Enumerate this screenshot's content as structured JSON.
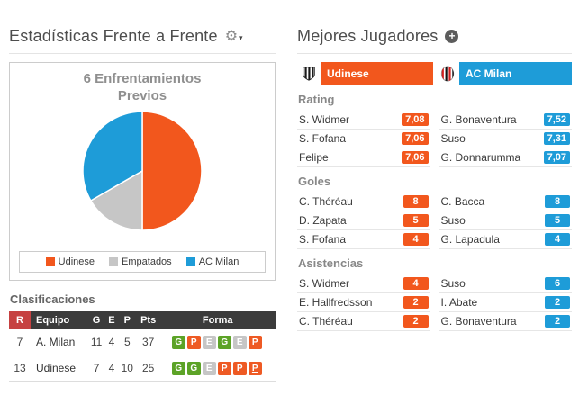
{
  "colors": {
    "orange": "#f2571d",
    "blue": "#1e9cd8",
    "draw_gray": "#c6c6c6",
    "win_green": "#5ca327",
    "loss_orange": "#ee5a24",
    "header_dark": "#3b3b3b",
    "rank_red": "#c64141"
  },
  "icons": {
    "settings": "⚙",
    "dropdown": "▾",
    "add": "+"
  },
  "left": {
    "title": "Estadísticas Frente a Frente",
    "chart": {
      "title_line1": "6 Enfrentamientos",
      "title_line2": "Previos",
      "legend": [
        {
          "label": "Udinese",
          "color": "#f2571d"
        },
        {
          "label": "Empatados",
          "color": "#c6c6c6"
        },
        {
          "label": "AC Milan",
          "color": "#1e9cd8"
        }
      ]
    },
    "standings": {
      "heading": "Clasificaciones",
      "columns": [
        "R",
        "Equipo",
        "G",
        "E",
        "P",
        "Pts",
        "Forma"
      ],
      "rows": [
        {
          "rank": "7",
          "team": "A. Milan",
          "g": "11",
          "e": "4",
          "p": "5",
          "pts": "37",
          "form": [
            "G",
            "P",
            "E",
            "G",
            "E",
            "P"
          ]
        },
        {
          "rank": "13",
          "team": "Udinese",
          "g": "7",
          "e": "4",
          "p": "10",
          "pts": "25",
          "form": [
            "G",
            "G",
            "E",
            "P",
            "P",
            "P"
          ]
        }
      ]
    }
  },
  "right": {
    "title": "Mejores Jugadores",
    "teams": [
      {
        "name": "Udinese",
        "color": "#f2571d"
      },
      {
        "name": "AC Milan",
        "color": "#1e9cd8"
      }
    ],
    "sections": [
      {
        "label": "Rating",
        "rows": [
          {
            "home_player": "S. Widmer",
            "home_value": "7,08",
            "away_player": "G. Bonaventura",
            "away_value": "7,52"
          },
          {
            "home_player": "S. Fofana",
            "home_value": "7,06",
            "away_player": "Suso",
            "away_value": "7,31"
          },
          {
            "home_player": "Felipe",
            "home_value": "7,06",
            "away_player": "G. Donnarumma",
            "away_value": "7,07"
          }
        ]
      },
      {
        "label": "Goles",
        "rows": [
          {
            "home_player": "C. Théréau",
            "home_value": "8",
            "away_player": "C. Bacca",
            "away_value": "8"
          },
          {
            "home_player": "D. Zapata",
            "home_value": "5",
            "away_player": "Suso",
            "away_value": "5"
          },
          {
            "home_player": "S. Fofana",
            "home_value": "4",
            "away_player": "G. Lapadula",
            "away_value": "4"
          }
        ]
      },
      {
        "label": "Asistencias",
        "rows": [
          {
            "home_player": "S. Widmer",
            "home_value": "4",
            "away_player": "Suso",
            "away_value": "6"
          },
          {
            "home_player": "E. Hallfredsson",
            "home_value": "2",
            "away_player": "I. Abate",
            "away_value": "2"
          },
          {
            "home_player": "C. Théréau",
            "home_value": "2",
            "away_player": "G. Bonaventura",
            "away_value": "2"
          }
        ]
      }
    ]
  },
  "chart_data": {
    "type": "pie",
    "title": "6 Enfrentamientos Previos",
    "total_matches": 6,
    "slices": [
      {
        "label": "Udinese",
        "value": 3,
        "percent": 50,
        "color": "#f2571d"
      },
      {
        "label": "Empatados",
        "value": 1,
        "percent": 16.67,
        "color": "#c6c6c6"
      },
      {
        "label": "AC Milan",
        "value": 2,
        "percent": 33.33,
        "color": "#1e9cd8"
      }
    ],
    "legend_position": "bottom"
  }
}
